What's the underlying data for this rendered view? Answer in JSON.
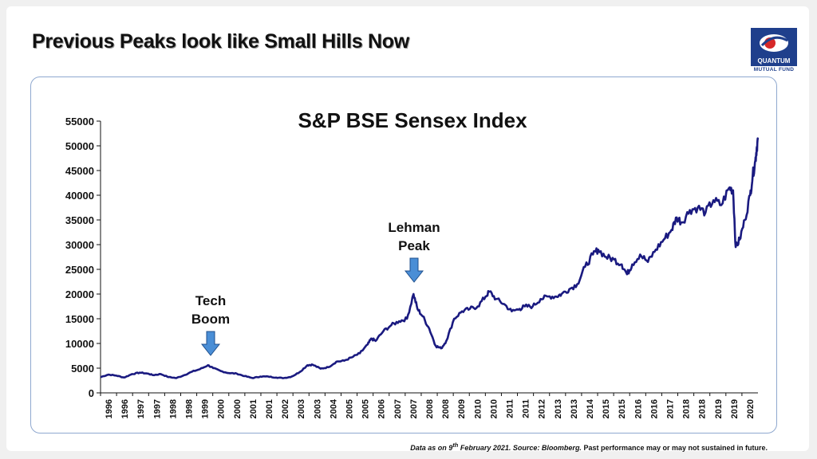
{
  "header": {
    "title": "Previous Peaks look like Small Hills Now"
  },
  "logo": {
    "name": "QUANTUM",
    "subtitle": "MUTUAL FUND"
  },
  "footnote": {
    "prefix": "Data as on 9",
    "sup": "th",
    "middle": " February 2021. Source: Bloomberg.",
    "suffix": " Past performance may or may not sustained in future."
  },
  "chart_data": {
    "type": "line",
    "title": "S&P BSE Sensex Index",
    "xlabel": "",
    "ylabel": "",
    "ylim": [
      0,
      55000
    ],
    "yticks": [
      0,
      5000,
      10000,
      15000,
      20000,
      25000,
      30000,
      35000,
      40000,
      45000,
      50000,
      55000
    ],
    "xlim": [
      1996,
      2021.1
    ],
    "xticks": [
      "1996",
      "1996",
      "1997",
      "1997",
      "1998",
      "1998",
      "1999",
      "2000",
      "2000",
      "2001",
      "2001",
      "2002",
      "2003",
      "2003",
      "2004",
      "2005",
      "2005",
      "2006",
      "2007",
      "2007",
      "2008",
      "2008",
      "2009",
      "2010",
      "2010",
      "2011",
      "2011",
      "2012",
      "2013",
      "2013",
      "2014",
      "2015",
      "2015",
      "2016",
      "2016",
      "2017",
      "2018",
      "2018",
      "2019",
      "2019",
      "2020"
    ],
    "grid": false,
    "legend": "none",
    "line_color": "#1a1a80",
    "series": [
      {
        "x": [
          1996.0,
          1996.3,
          1996.6,
          1996.9,
          1997.2,
          1997.5,
          1997.8,
          1998.0,
          1998.3,
          1998.6,
          1998.9,
          1999.2,
          1999.5,
          1999.8,
          2000.1,
          2000.3,
          2000.6,
          2000.9,
          2001.2,
          2001.5,
          2001.8,
          2002.1,
          2002.4,
          2002.7,
          2003.0,
          2003.3,
          2003.6,
          2003.9,
          2004.1,
          2004.4,
          2004.7,
          2005.0,
          2005.3,
          2005.6,
          2005.9,
          2006.2,
          2006.35,
          2006.5,
          2006.8,
          2007.1,
          2007.4,
          2007.7,
          2007.95,
          2008.1,
          2008.3,
          2008.55,
          2008.8,
          2009.0,
          2009.2,
          2009.5,
          2009.8,
          2010.1,
          2010.4,
          2010.7,
          2010.85,
          2011.1,
          2011.4,
          2011.7,
          2012.0,
          2012.2,
          2012.5,
          2012.8,
          2013.1,
          2013.4,
          2013.6,
          2013.9,
          2014.2,
          2014.5,
          2014.8,
          2015.0,
          2015.3,
          2015.6,
          2015.9,
          2016.1,
          2016.3,
          2016.6,
          2016.9,
          2017.2,
          2017.5,
          2017.8,
          2018.0,
          2018.2,
          2018.5,
          2018.8,
          2019.1,
          2019.4,
          2019.7,
          2020.0,
          2020.15,
          2020.25,
          2020.4,
          2020.6,
          2020.8,
          2020.9,
          2021.0,
          2021.05,
          2021.1
        ],
        "y": [
          3200,
          3700,
          3500,
          3100,
          3800,
          4100,
          3900,
          3600,
          3800,
          3200,
          3000,
          3600,
          4300,
          4800,
          5600,
          5000,
          4400,
          4000,
          3900,
          3400,
          3000,
          3300,
          3300,
          3100,
          3000,
          3300,
          4200,
          5600,
          5700,
          4900,
          5200,
          6300,
          6500,
          7200,
          8000,
          9800,
          11000,
          10500,
          12500,
          13700,
          14500,
          15000,
          20000,
          17000,
          15500,
          13000,
          9500,
          9000,
          10500,
          15000,
          16500,
          17000,
          17500,
          19500,
          20500,
          19000,
          18000,
          16500,
          17000,
          17500,
          17500,
          19000,
          19500,
          19500,
          20000,
          21000,
          22000,
          25500,
          28000,
          29000,
          27500,
          27000,
          26000,
          24000,
          26000,
          28000,
          26500,
          29000,
          31000,
          33000,
          35500,
          34500,
          37000,
          37500,
          36500,
          39000,
          38000,
          41500,
          41000,
          29500,
          31000,
          35000,
          40000,
          44000,
          47000,
          49500,
          51300
        ]
      }
    ],
    "annotations": [
      {
        "line1": "Tech",
        "line2": "Boom",
        "x": 2000.0
      },
      {
        "line1": "Lehman",
        "line2": "Peak",
        "x": 2008.0
      }
    ]
  }
}
